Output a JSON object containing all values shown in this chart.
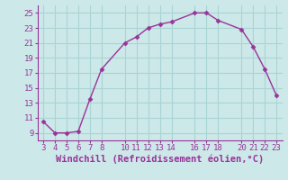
{
  "x": [
    3,
    4,
    5,
    6,
    7,
    8,
    10,
    11,
    12,
    13,
    14,
    16,
    17,
    18,
    20,
    21,
    22,
    23
  ],
  "y": [
    10.5,
    9.0,
    9.0,
    9.2,
    13.5,
    17.5,
    21.0,
    21.8,
    23.0,
    23.5,
    23.8,
    25.0,
    25.0,
    24.0,
    22.8,
    20.5,
    17.5,
    14.0
  ],
  "line_color": "#993399",
  "marker_color": "#993399",
  "bg_color": "#cce8e8",
  "grid_color": "#aad4d4",
  "xlabel": "Windchill (Refroidissement éolien,°C)",
  "xlabel_color": "#993399",
  "xlim": [
    2.5,
    23.5
  ],
  "ylim": [
    8,
    26
  ],
  "xticks": [
    3,
    4,
    5,
    6,
    7,
    8,
    10,
    11,
    12,
    13,
    14,
    16,
    17,
    18,
    20,
    21,
    22,
    23
  ],
  "yticks": [
    9,
    11,
    13,
    15,
    17,
    19,
    21,
    23,
    25
  ],
  "tick_color": "#993399",
  "tick_fontsize": 6.5,
  "xlabel_fontsize": 7.5
}
